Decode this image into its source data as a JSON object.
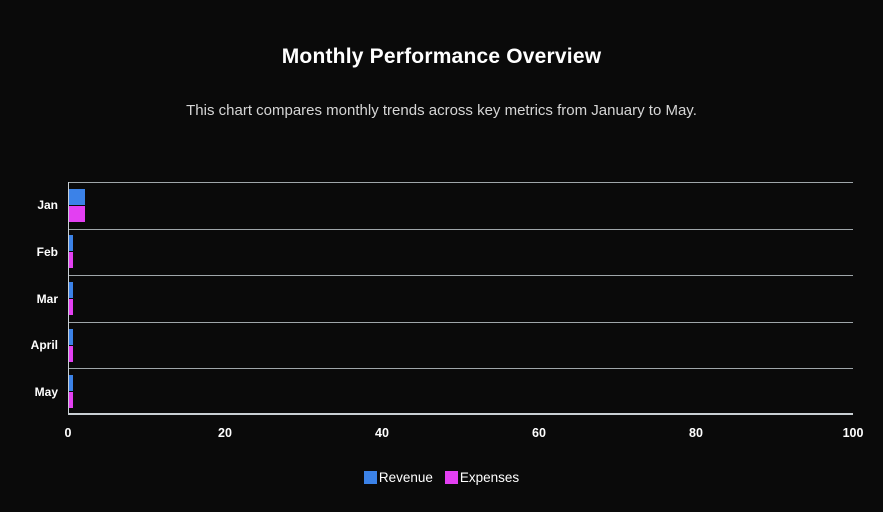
{
  "page": {
    "background": "#0a0a0a"
  },
  "chart": {
    "title": "Monthly Performance Overview",
    "subtitle": "This chart compares monthly trends across key metrics from January to May."
  },
  "chart_data": {
    "type": "bar",
    "orientation": "horizontal",
    "title": "Monthly Performance Overview",
    "subtitle": "This chart compares monthly trends across key metrics from January to May.",
    "categories": [
      "Jan",
      "Feb",
      "Mar",
      "April",
      "May"
    ],
    "series": [
      {
        "name": "Revenue",
        "color": "#3b82e8",
        "values": [
          2,
          0.5,
          0.5,
          0.5,
          0.5
        ]
      },
      {
        "name": "Expenses",
        "color": "#e33ff2",
        "values": [
          2,
          0.5,
          0.5,
          0.5,
          0.5
        ]
      }
    ],
    "x_axis": {
      "min": 0,
      "max": 100,
      "tick_labels": [
        "0",
        "20",
        "40",
        "60",
        "80",
        "100"
      ],
      "ticks": [
        0,
        20,
        40,
        60,
        80,
        100
      ]
    },
    "grid": true,
    "legend_position": "bottom",
    "colors": {
      "grid": "#9fa6aa",
      "axis": "#c9d0d4",
      "tick_label": "#ffffff",
      "title": "#ffffff",
      "subtitle": "#d6d6d6",
      "background": "#0a0a0a"
    }
  }
}
